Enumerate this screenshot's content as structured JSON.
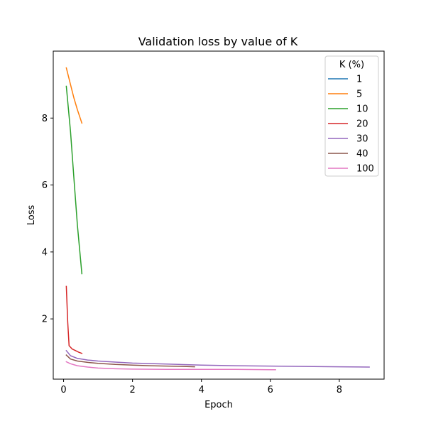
{
  "chart_data": {
    "type": "line",
    "title": "Validation loss by value of K",
    "xlabel": "Epoch",
    "ylabel": "Loss",
    "xlim": [
      -0.3,
      9.3
    ],
    "ylim": [
      0.2,
      10.0
    ],
    "xticks": [
      0,
      2,
      4,
      6,
      8
    ],
    "yticks": [
      2,
      4,
      6,
      8
    ],
    "x_tick_labels": [
      "0",
      "2",
      "4",
      "6",
      "8"
    ],
    "y_tick_labels": [
      "2",
      "4",
      "6",
      "8"
    ],
    "grid": false,
    "legend": {
      "title": "K (%)",
      "placement": "top-right"
    },
    "series": [
      {
        "name": "1",
        "color": "#1f77b4",
        "x": [],
        "y": []
      },
      {
        "name": "5",
        "color": "#ff7f0e",
        "x": [
          0.08,
          0.2,
          0.3,
          0.4,
          0.53
        ],
        "y": [
          9.5,
          9.0,
          8.6,
          8.25,
          7.85
        ]
      },
      {
        "name": "10",
        "color": "#2ca02c",
        "x": [
          0.08,
          0.2,
          0.3,
          0.4,
          0.53
        ],
        "y": [
          8.95,
          7.6,
          6.2,
          4.8,
          3.35
        ]
      },
      {
        "name": "20",
        "color": "#d62728",
        "x": [
          0.08,
          0.12,
          0.16,
          0.25,
          0.35,
          0.45,
          0.53
        ],
        "y": [
          2.97,
          1.9,
          1.2,
          1.1,
          1.05,
          1.0,
          0.97
        ]
      },
      {
        "name": "30",
        "color": "#9467bd",
        "x": [
          0.08,
          0.2,
          0.4,
          0.7,
          1.0,
          1.5,
          2.0,
          3.0,
          4.0,
          5.0,
          6.0,
          7.0,
          8.0,
          8.87
        ],
        "y": [
          1.05,
          0.9,
          0.82,
          0.77,
          0.74,
          0.71,
          0.68,
          0.65,
          0.62,
          0.6,
          0.59,
          0.58,
          0.57,
          0.56
        ]
      },
      {
        "name": "40",
        "color": "#8c564b",
        "x": [
          0.08,
          0.2,
          0.4,
          0.7,
          1.0,
          1.5,
          2.0,
          2.5,
          3.0,
          3.5,
          3.8
        ],
        "y": [
          0.92,
          0.8,
          0.74,
          0.7,
          0.67,
          0.64,
          0.62,
          0.6,
          0.59,
          0.58,
          0.57
        ]
      },
      {
        "name": "100",
        "color": "#e377c2",
        "x": [
          0.08,
          0.2,
          0.4,
          0.7,
          1.0,
          1.5,
          2.0,
          3.0,
          4.0,
          5.0,
          6.15
        ],
        "y": [
          0.72,
          0.66,
          0.6,
          0.56,
          0.53,
          0.51,
          0.5,
          0.49,
          0.49,
          0.49,
          0.48
        ]
      }
    ]
  }
}
